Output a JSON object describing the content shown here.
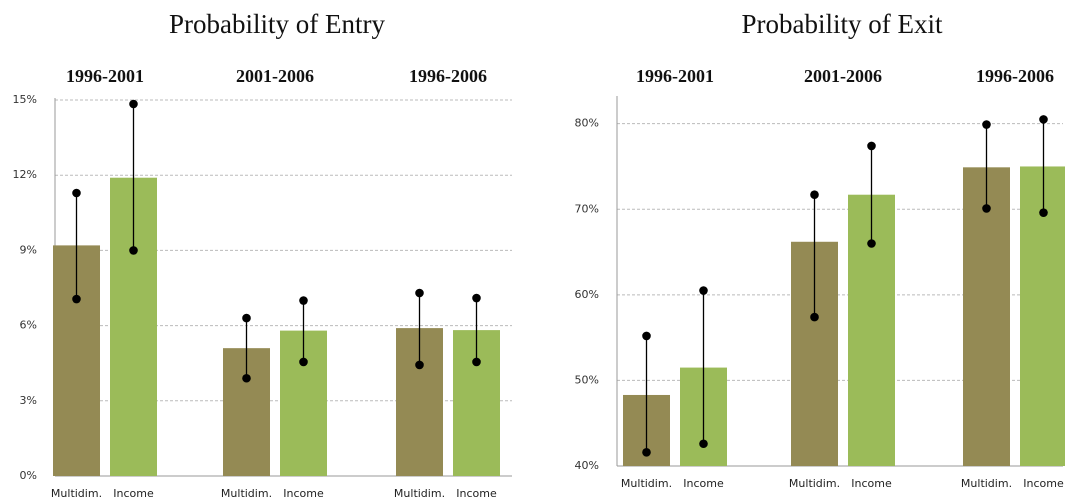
{
  "chart_data": [
    {
      "type": "bar",
      "title": "Probability of Entry",
      "categories": [
        "1996-2001",
        "2001-2006",
        "1996-2006"
      ],
      "series": [
        {
          "name": "Multidim.",
          "color": "#948a54",
          "values": [
            9.2,
            5.1,
            5.9
          ],
          "low": [
            7.06,
            3.9,
            4.43
          ],
          "high": [
            11.29,
            6.3,
            7.3
          ]
        },
        {
          "name": "Income",
          "color": "#9bbb59",
          "values": [
            11.9,
            5.8,
            5.82
          ],
          "low": [
            9.0,
            4.55,
            4.55
          ],
          "high": [
            14.84,
            7.0,
            7.1
          ]
        }
      ],
      "ylim": [
        0,
        15
      ],
      "yticks": [
        {
          "value": 0,
          "label": "0%"
        },
        {
          "value": 3,
          "label": "3%"
        },
        {
          "value": 6,
          "label": "6%"
        },
        {
          "value": 9,
          "label": "9%"
        },
        {
          "value": 12,
          "label": "12%"
        },
        {
          "value": 15,
          "label": "15%"
        }
      ],
      "grid": true
    },
    {
      "type": "bar",
      "title": "Probability of Exit",
      "categories": [
        "1996-2001",
        "2001-2006",
        "1996-2006"
      ],
      "series": [
        {
          "name": "Multidim.",
          "color": "#948a54",
          "values": [
            48.3,
            66.2,
            74.9
          ],
          "low": [
            41.6,
            57.4,
            70.1
          ],
          "high": [
            55.2,
            71.7,
            79.9
          ]
        },
        {
          "name": "Income",
          "color": "#9bbb59",
          "values": [
            51.5,
            71.7,
            75.0
          ],
          "low": [
            42.6,
            66.0,
            69.6
          ],
          "high": [
            60.5,
            77.4,
            80.5
          ]
        }
      ],
      "ylim": [
        40,
        83
      ],
      "yticks": [
        {
          "value": 40,
          "label": "40%"
        },
        {
          "value": 50,
          "label": "50%"
        },
        {
          "value": 60,
          "label": "60%"
        },
        {
          "value": 70,
          "label": "70%"
        },
        {
          "value": 80,
          "label": "80%"
        }
      ],
      "grid": true
    }
  ]
}
